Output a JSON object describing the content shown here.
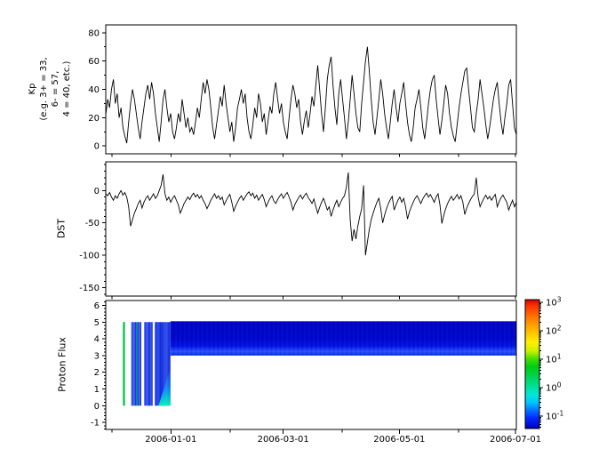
{
  "colors": {
    "foreground": "#000000",
    "background": "#ffffff",
    "series_line": "#000000"
  },
  "time_axis": {
    "xlim": {
      "start": "2005-11-27T18:00:00Z",
      "end": "2006-07-01T11:00:00Z"
    },
    "ticks": [
      {
        "date": "2005-12-01",
        "label": ""
      },
      {
        "date": "2006-01-01",
        "label": "2006-01-01"
      },
      {
        "date": "2006-02-01",
        "label": ""
      },
      {
        "date": "2006-03-01",
        "label": "2006-03-01"
      },
      {
        "date": "2006-04-01",
        "label": ""
      },
      {
        "date": "2006-05-01",
        "label": "2006-05-01"
      },
      {
        "date": "2006-06-01",
        "label": ""
      },
      {
        "date": "2006-07-01",
        "label": "2006-07-01"
      }
    ]
  },
  "chart_data": [
    {
      "type": "line",
      "id": "kp",
      "ylabel_lines": [
        "Kp",
        "(e.g. 3+ = 33,",
        "6- = 57,",
        "4 = 40, etc.)"
      ],
      "yticks": [
        0,
        20,
        40,
        60,
        80
      ],
      "y_minor_step": 10,
      "ylim": [
        -5.5,
        85.5
      ],
      "values": [
        22,
        33,
        27,
        40,
        47,
        30,
        37,
        20,
        27,
        13,
        7,
        2,
        17,
        30,
        40,
        33,
        23,
        13,
        5,
        17,
        27,
        37,
        43,
        33,
        45,
        37,
        23,
        13,
        3,
        17,
        33,
        40,
        27,
        17,
        23,
        10,
        5,
        13,
        23,
        17,
        33,
        23,
        13,
        20,
        10,
        13,
        8,
        17,
        27,
        20,
        33,
        45,
        37,
        47,
        40,
        27,
        13,
        5,
        15,
        25,
        35,
        28,
        43,
        30,
        20,
        10,
        17,
        3,
        13,
        27,
        33,
        40,
        30,
        37,
        20,
        10,
        5,
        15,
        27,
        20,
        37,
        30,
        17,
        23,
        8,
        18,
        28,
        23,
        37,
        45,
        33,
        23,
        30,
        17,
        10,
        5,
        20,
        33,
        43,
        37,
        27,
        33,
        17,
        8,
        18,
        25,
        13,
        23,
        35,
        28,
        43,
        57,
        40,
        23,
        10,
        27,
        47,
        57,
        63,
        43,
        27,
        15,
        37,
        47,
        33,
        20,
        5,
        17,
        33,
        50,
        37,
        23,
        13,
        10,
        30,
        45,
        60,
        70,
        53,
        33,
        17,
        8,
        20,
        33,
        47,
        37,
        23,
        13,
        5,
        17,
        30,
        40,
        27,
        17,
        30,
        37,
        45,
        30,
        17,
        8,
        3,
        13,
        27,
        33,
        40,
        27,
        13,
        5,
        17,
        30,
        40,
        47,
        50,
        33,
        20,
        8,
        18,
        30,
        43,
        37,
        23,
        13,
        7,
        3,
        15,
        27,
        37,
        45,
        53,
        55,
        40,
        27,
        13,
        10,
        23,
        33,
        47,
        37,
        27,
        15,
        5,
        13,
        23,
        33,
        40,
        45,
        30,
        17,
        8,
        20,
        30,
        43,
        47,
        30,
        13,
        8
      ]
    },
    {
      "type": "line",
      "id": "dst",
      "ylabel": "DST",
      "yticks": [
        0,
        -50,
        -100,
        -150
      ],
      "y_minor_step": 10,
      "ylim": [
        -163,
        44.4
      ],
      "values": [
        -5,
        -8,
        -3,
        -10,
        -15,
        -8,
        -12,
        -5,
        0,
        -7,
        -3,
        -10,
        -25,
        -55,
        -45,
        -35,
        -28,
        -20,
        -15,
        -27,
        -18,
        -12,
        -8,
        -15,
        -10,
        -5,
        -12,
        -8,
        0,
        8,
        25,
        -5,
        -15,
        -10,
        -18,
        -12,
        -8,
        -15,
        -22,
        -35,
        -28,
        -20,
        -15,
        -10,
        -14,
        -8,
        -4,
        -10,
        -6,
        -12,
        -8,
        -15,
        -20,
        -28,
        -22,
        -15,
        -10,
        -5,
        -12,
        -8,
        -14,
        -10,
        -22,
        -16,
        -10,
        -6,
        -18,
        -32,
        -24,
        -18,
        -12,
        -8,
        -15,
        -10,
        -5,
        -2,
        -8,
        -4,
        -12,
        -7,
        -15,
        -10,
        -6,
        -14,
        -25,
        -18,
        -12,
        -8,
        -16,
        -20,
        -14,
        -9,
        -5,
        -12,
        -7,
        -3,
        -10,
        -18,
        -30,
        -22,
        -16,
        -11,
        -7,
        -13,
        -8,
        -4,
        -11,
        -15,
        -20,
        -13,
        -25,
        -35,
        -26,
        -18,
        -12,
        -20,
        -30,
        -25,
        -40,
        -30,
        -22,
        -15,
        -25,
        -18,
        -12,
        -8,
        5,
        28,
        -45,
        -78,
        -60,
        -75,
        -55,
        -40,
        -28,
        8,
        -100,
        -80,
        -60,
        -45,
        -35,
        -26,
        -18,
        -12,
        -28,
        -50,
        -38,
        -28,
        -20,
        -14,
        -9,
        -30,
        -22,
        -15,
        -10,
        -18,
        -12,
        -25,
        -44,
        -33,
        -25,
        -18,
        -12,
        -8,
        -14,
        -20,
        -13,
        -8,
        -4,
        -10,
        -6,
        -12,
        -18,
        -10,
        -5,
        -22,
        -51,
        -38,
        -28,
        -20,
        -14,
        -9,
        -15,
        -11,
        -6,
        -13,
        -8,
        -18,
        -37,
        -27,
        -20,
        -14,
        -9,
        -5,
        20,
        -10,
        -25,
        -18,
        -12,
        -7,
        -13,
        -9,
        -15,
        -10,
        -6,
        -25,
        -17,
        -11,
        -7,
        -13,
        -18,
        -30,
        -22,
        -15,
        -25,
        -18
      ]
    },
    {
      "type": "heatmap",
      "id": "proton_flux",
      "ylabel": "Proton Flux",
      "yticks": [
        -1,
        0,
        1,
        2,
        3,
        4,
        5,
        6
      ],
      "y_minor_step": 0.2,
      "ylim": [
        -1.42,
        6.29
      ],
      "stripes": [
        {
          "x0": "2005-12-06T18:00:00Z",
          "x1": "2005-12-07T20:00:00Z",
          "y0": 0,
          "y1": 5,
          "segments": [
            {
              "p0": 0,
              "p1": 1,
              "color": "#00cc44"
            }
          ]
        },
        {
          "x0": "2005-12-11T03:00:00Z",
          "x1": "2005-12-16T10:00:00Z",
          "y0": 0,
          "y1": 5,
          "segments": [
            {
              "p0": 0,
              "p1": 0.2,
              "color": "#2e4fee"
            },
            {
              "p0": 0.2,
              "p1": 0.34,
              "color": "#5577ff"
            },
            {
              "p0": 0.34,
              "p1": 0.5,
              "color": "#1a35e0"
            },
            {
              "p0": 0.5,
              "p1": 0.59,
              "color": "#00cc44"
            },
            {
              "p0": 0.59,
              "p1": 0.75,
              "color": "#2440e8"
            },
            {
              "p0": 0.75,
              "p1": 0.88,
              "color": "#4d6aff"
            },
            {
              "p0": 0.88,
              "p1": 1,
              "color": "#1a30d8"
            }
          ]
        },
        {
          "x0": "2005-12-17T23:00:00Z",
          "x1": "2005-12-22T11:00:00Z",
          "y0": 0,
          "y1": 5,
          "segments": [
            {
              "p0": 0,
              "p1": 0.25,
              "color": "#2440e8"
            },
            {
              "p0": 0.25,
              "p1": 0.45,
              "color": "#4d6aff"
            },
            {
              "p0": 0.45,
              "p1": 0.7,
              "color": "#1a35e0"
            },
            {
              "p0": 0.7,
              "p1": 1,
              "color": "#3a55f0"
            }
          ]
        },
        {
          "x0": "2005-12-23T12:00:00Z",
          "x1": "2005-12-31T18:00:00Z",
          "y0": 0,
          "y1": 5,
          "segments": [
            {
              "p0": 0,
              "p1": 0.3,
              "color": "#2846ec"
            },
            {
              "p0": 0.3,
              "p1": 0.55,
              "color": "#1a35e0"
            },
            {
              "p0": 0.55,
              "p1": 0.8,
              "color": "#3050f0"
            },
            {
              "p0": 0.8,
              "p1": 1,
              "color": "#2038e0"
            }
          ]
        }
      ],
      "glow": {
        "x0": "2005-12-25T12:00:00Z",
        "x1": "2005-12-31T18:00:00Z",
        "y0": 0,
        "y1": 2.3,
        "color_bottom": "#00ffaa",
        "color_mid": "#00d8ff"
      },
      "band": {
        "x0": "2005-12-31T18:00:00Z",
        "x1": "end",
        "y0": 3,
        "y1": 5.05,
        "stops": [
          {
            "p": 0,
            "color": "#0004c4"
          },
          {
            "p": 0.5,
            "color": "#0007ce"
          },
          {
            "p": 0.72,
            "color": "#0013e2"
          },
          {
            "p": 0.88,
            "color": "#2e52ff"
          },
          {
            "p": 1,
            "color": "#0030dc"
          }
        ]
      },
      "colorbar": {
        "range_exp": [
          -1.44,
          3.09
        ],
        "tick_exps": [
          3,
          2,
          1,
          0,
          -1
        ],
        "tick_base": "10",
        "stops": [
          {
            "p": 0,
            "color": "#d40000"
          },
          {
            "p": 0.05,
            "color": "#ff3300"
          },
          {
            "p": 0.15,
            "color": "#ff8000"
          },
          {
            "p": 0.25,
            "color": "#ffc000"
          },
          {
            "p": 0.33,
            "color": "#ffee00"
          },
          {
            "p": 0.4,
            "color": "#c8f000"
          },
          {
            "p": 0.46,
            "color": "#44dd00"
          },
          {
            "p": 0.52,
            "color": "#00cc11"
          },
          {
            "p": 0.6,
            "color": "#00d455"
          },
          {
            "p": 0.68,
            "color": "#00e29d"
          },
          {
            "p": 0.74,
            "color": "#00e8d8"
          },
          {
            "p": 0.8,
            "color": "#00c2ff"
          },
          {
            "p": 0.86,
            "color": "#0072ff"
          },
          {
            "p": 0.92,
            "color": "#0028ff"
          },
          {
            "p": 1,
            "color": "#0000b8"
          }
        ]
      }
    }
  ]
}
